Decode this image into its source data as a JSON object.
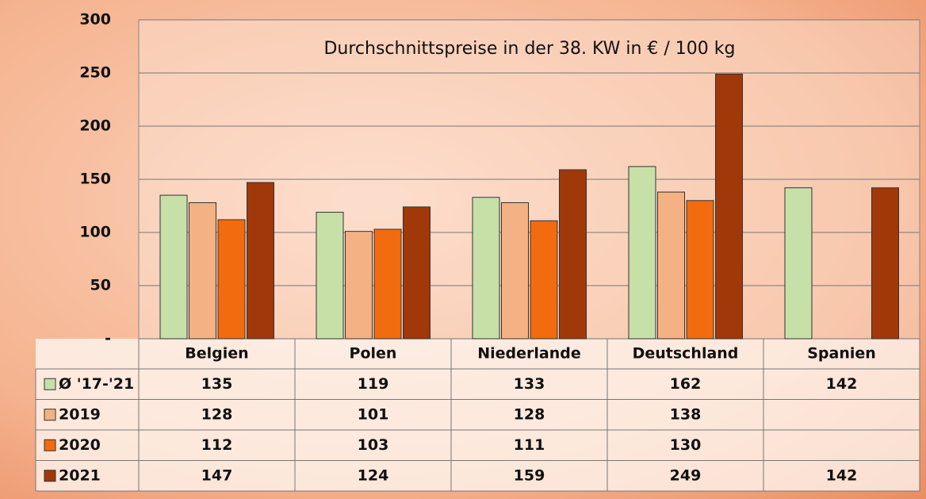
{
  "chart_data": {
    "type": "bar",
    "title": "Durchschnittspreise in der 38. KW in € / 100 kg",
    "categories": [
      "Belgien",
      "Polen",
      "Niederlande",
      "Deutschland",
      "Spanien"
    ],
    "series": [
      {
        "name": "Ø '17-'21",
        "color": "#c6e0a8",
        "values": [
          135,
          119,
          133,
          162,
          142
        ]
      },
      {
        "name": "2019",
        "color": "#f4b183",
        "values": [
          128,
          101,
          128,
          138,
          null
        ]
      },
      {
        "name": "2020",
        "color": "#f26b0f",
        "values": [
          112,
          103,
          111,
          130,
          null
        ]
      },
      {
        "name": "2021",
        "color": "#a0380a",
        "values": [
          147,
          124,
          159,
          249,
          142
        ]
      }
    ],
    "ylim": [
      0,
      300
    ],
    "yticks": [
      {
        "value": 0,
        "label": "-"
      },
      50,
      100,
      150,
      200,
      250,
      300
    ],
    "grid": true
  }
}
